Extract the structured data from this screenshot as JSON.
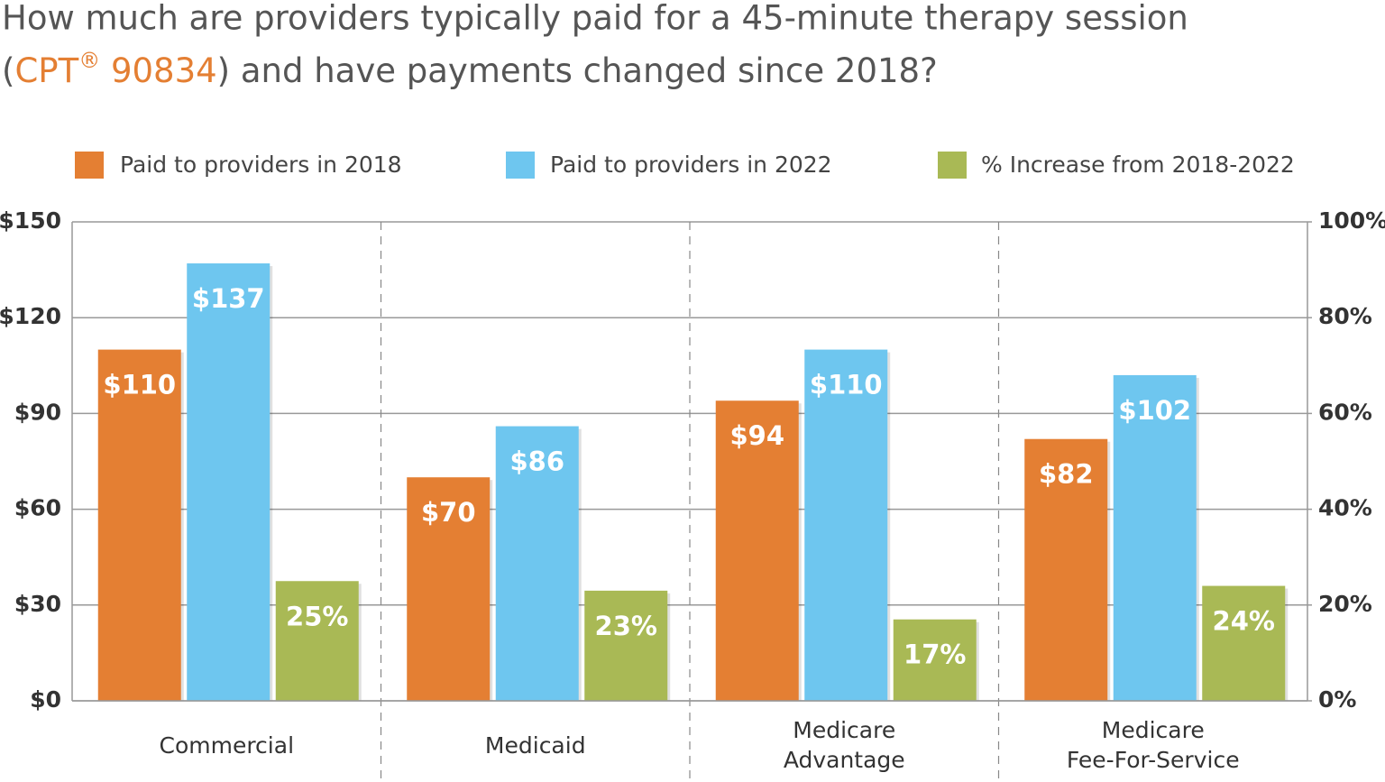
{
  "chart_data": {
    "type": "bar",
    "title": {
      "line1": "How much are providers typically paid for a 45-minute therapy session",
      "line2": [
        {
          "text": "(",
          "color": "#555555"
        },
        {
          "text": "CPT",
          "color": "#e47f33"
        },
        {
          "text": "®",
          "color": "#e47f33"
        },
        {
          "text": " 90834",
          "color": "#e47f33"
        },
        {
          "text": ") and have payments changed since 2018?",
          "color": "#555555"
        }
      ]
    },
    "categories": [
      [
        "Commercial"
      ],
      [
        "Medicaid"
      ],
      [
        "Medicare",
        "Advantage"
      ],
      [
        "Medicare",
        "Fee-For-Service"
      ]
    ],
    "series": [
      {
        "name": "Paid to providers in 2018",
        "color": "#e47f33",
        "values": [
          110,
          70,
          94,
          82
        ],
        "value_labels": [
          "$110",
          "$70",
          "$94",
          "$82"
        ]
      },
      {
        "name": "Paid to providers in 2022",
        "color": "#6ec6ef",
        "values": [
          137,
          86,
          110,
          102
        ],
        "value_labels": [
          "$137",
          "$86",
          "$110",
          "$102"
        ]
      },
      {
        "name": "% Increase from 2018-2022",
        "color": "#a9b955",
        "axis": "y2",
        "values": [
          25,
          23,
          17,
          24
        ],
        "value_labels": [
          "25%",
          "23%",
          "17%",
          "24%"
        ]
      }
    ],
    "ylim": [
      0,
      150
    ],
    "yticks": [
      {
        "value": 0,
        "label": "$0"
      },
      {
        "value": 30,
        "label": "$30"
      },
      {
        "value": 60,
        "label": "$60"
      },
      {
        "value": 90,
        "label": "$90"
      },
      {
        "value": 120,
        "label": "$120"
      },
      {
        "value": 150,
        "label": "$150"
      }
    ],
    "y2lim": [
      0,
      100
    ],
    "y2ticks": [
      {
        "value": 0,
        "label": "0%"
      },
      {
        "value": 20,
        "label": "20%"
      },
      {
        "value": 40,
        "label": "40%"
      },
      {
        "value": 60,
        "label": "60%"
      },
      {
        "value": 80,
        "label": "80%"
      },
      {
        "value": 100,
        "label": "100%"
      }
    ],
    "grid": true,
    "legend": "top"
  }
}
